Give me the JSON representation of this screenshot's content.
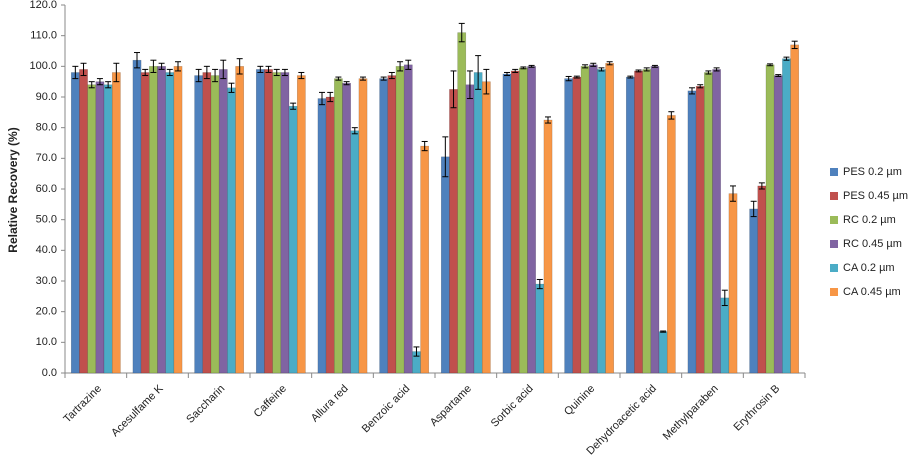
{
  "chart_data": {
    "type": "bar",
    "y_label": "Relative Recovery (%)",
    "categories": [
      "Tartrazine",
      "Acesulfame K",
      "Saccharin",
      "Caffeine",
      "Allura red",
      "Benzoic acid",
      "Aspartame",
      "Sorbic acid",
      "Quinine",
      "Dehydroacetic acid",
      "Methylparaben",
      "Erythrosin B"
    ],
    "series": [
      {
        "name": "PES 0.2 µm",
        "color": "#4f81bd",
        "values": [
          98,
          102,
          97,
          99,
          89.5,
          96,
          70.5,
          97.5,
          96,
          96.5,
          92,
          53.5
        ],
        "errors": [
          2,
          2.5,
          2,
          1,
          2,
          0.5,
          6.5,
          0.5,
          0.7,
          0.3,
          1,
          2.5
        ]
      },
      {
        "name": "PES 0.45 µm",
        "color": "#c0504d",
        "values": [
          99,
          98,
          98,
          99,
          90,
          97,
          92.5,
          98.5,
          96.5,
          98.5,
          93.5,
          61
        ],
        "errors": [
          2,
          1,
          2,
          1,
          1.5,
          1,
          6,
          0.5,
          0.3,
          0.3,
          0.5,
          1
        ]
      },
      {
        "name": "RC 0.2 µm",
        "color": "#9bbb59",
        "values": [
          94,
          100,
          97,
          98,
          96,
          100,
          111,
          99.5,
          100,
          99,
          98,
          100.5
        ],
        "errors": [
          1,
          2,
          2,
          1,
          0.5,
          1.5,
          3,
          0.3,
          0.5,
          0.5,
          0.5,
          0.3
        ]
      },
      {
        "name": "RC 0.45 µm",
        "color": "#8064a2",
        "values": [
          95,
          100,
          99,
          98,
          94.5,
          100.5,
          94,
          100,
          100.5,
          100,
          99,
          97
        ],
        "errors": [
          1,
          1,
          3,
          1,
          0.5,
          1.5,
          4.5,
          0.3,
          0.5,
          0.3,
          0.5,
          0.3
        ]
      },
      {
        "name": "CA 0.2 µm",
        "color": "#4bacc6",
        "values": [
          94,
          98,
          93,
          87,
          79,
          7,
          98,
          29,
          99,
          13.5,
          24.5,
          102.5
        ],
        "errors": [
          1,
          1,
          1.5,
          1,
          1,
          1.5,
          5.5,
          1.5,
          0.5,
          0.2,
          2.5,
          0.5
        ]
      },
      {
        "name": "CA 0.45 µm",
        "color": "#f79646",
        "values": [
          98,
          100,
          100,
          97,
          96,
          74,
          95,
          82.5,
          101,
          84,
          58.5,
          107
        ],
        "errors": [
          3,
          1.5,
          2.5,
          1,
          0.5,
          1.5,
          4,
          1,
          0.5,
          1.2,
          2.5,
          1.2
        ]
      }
    ],
    "ylim": [
      0,
      120
    ],
    "yticks": [
      {
        "value": 0,
        "label": "0.0"
      },
      {
        "value": 10,
        "label": "10.0"
      },
      {
        "value": 20,
        "label": "20.0"
      },
      {
        "value": 30,
        "label": "30.0"
      },
      {
        "value": 40,
        "label": "40.0"
      },
      {
        "value": 50,
        "label": "50.0"
      },
      {
        "value": 60,
        "label": "60.0"
      },
      {
        "value": 70,
        "label": "70.0"
      },
      {
        "value": 80,
        "label": "80.0"
      },
      {
        "value": 90,
        "label": "90.0"
      },
      {
        "value": 100,
        "label": "100.0"
      },
      {
        "value": 110,
        "label": "110.0"
      },
      {
        "value": 120,
        "label": "120.0"
      }
    ],
    "grid": false,
    "legend": "right"
  }
}
